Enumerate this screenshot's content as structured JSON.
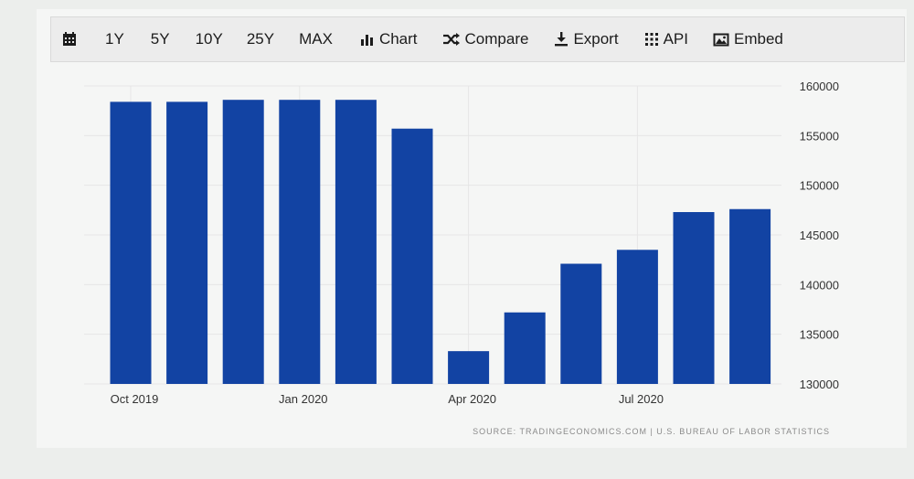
{
  "toolbar": {
    "calendar_icon": "calendar-icon",
    "ranges": [
      "1Y",
      "5Y",
      "10Y",
      "25Y",
      "MAX"
    ],
    "chart_label": "Chart",
    "compare_label": "Compare",
    "export_label": "Export",
    "api_label": "API",
    "embed_label": "Embed"
  },
  "source_text": "SOURCE: TRADINGECONOMICS.COM  |  U.S. BUREAU OF LABOR STATISTICS",
  "colors": {
    "bar": "#1243a3",
    "grid": "#e6e6e6",
    "panel": "#f5f6f5"
  },
  "chart_data": {
    "type": "bar",
    "categories": [
      "Oct 2019",
      "Nov 2019",
      "Dec 2019",
      "Jan 2020",
      "Feb 2020",
      "Mar 2020",
      "Apr 2020",
      "May 2020",
      "Jun 2020",
      "Jul 2020",
      "Aug 2020",
      "Sep 2020"
    ],
    "x_tick_labels": [
      "Oct 2019",
      "",
      "",
      "Jan 2020",
      "",
      "",
      "Apr 2020",
      "",
      "",
      "Jul 2020",
      "",
      ""
    ],
    "values": [
      158400,
      158400,
      158600,
      158600,
      158600,
      155700,
      133300,
      137200,
      142100,
      143500,
      147300,
      147600
    ],
    "y_ticks": [
      130000,
      135000,
      140000,
      145000,
      150000,
      155000,
      160000
    ],
    "ylim": [
      130000,
      160000
    ],
    "y_axis_side": "right",
    "grid": true,
    "title": "",
    "xlabel": "",
    "ylabel": ""
  }
}
